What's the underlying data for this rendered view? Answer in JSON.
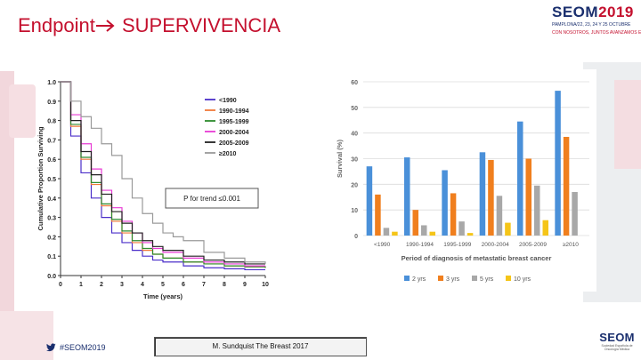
{
  "slide": {
    "title_left": "Endpoint",
    "title_right": "SUPERVIVENCIA",
    "hashtag": "#SEOM2019",
    "reference": "M. Sundquist The Breast  2017"
  },
  "logo_top": {
    "brand": "SEOM",
    "year": "2019",
    "subtitle": "PAMPLONA/22, 23, 24 Y 25 OCTUBRE",
    "tagline": "CON NOSOTROS, JUNTOS AVANZAMOS EN CÁNCER"
  },
  "logo_bottom": {
    "brand": "SEOM",
    "subtitle": "Sociedad Española de Oncología Médica"
  },
  "colors": {
    "accent_red": "#c4102e",
    "navy": "#1a2f6e"
  },
  "chart_data": [
    {
      "type": "line",
      "title": "",
      "xlabel": "Time (years)",
      "ylabel": "Cumulative Proportion Surviving",
      "xlim": [
        0,
        10
      ],
      "ylim": [
        0,
        1.0
      ],
      "xticks": [
        "0",
        "1",
        "2",
        "3",
        "4",
        "5",
        "6",
        "7",
        "8",
        "9",
        "10"
      ],
      "yticks": [
        "0.0",
        "0.1",
        "0.2",
        "0.3",
        "0.4",
        "0.5",
        "0.6",
        "0.7",
        "0.8",
        "0.9",
        "1.0"
      ],
      "annotation": "P for trend ≤0.001",
      "legend_position": "top-right",
      "series": [
        {
          "name": "<1990",
          "color": "#4b2fc9",
          "x": [
            0,
            0.5,
            1,
            1.5,
            2,
            2.5,
            3,
            3.5,
            4,
            4.5,
            5,
            6,
            7,
            8,
            9,
            10
          ],
          "y": [
            1.0,
            0.72,
            0.53,
            0.4,
            0.3,
            0.22,
            0.17,
            0.13,
            0.1,
            0.08,
            0.07,
            0.05,
            0.04,
            0.035,
            0.03,
            0.03
          ]
        },
        {
          "name": "1990-1994",
          "color": "#f07a3a",
          "x": [
            0,
            0.5,
            1,
            1.5,
            2,
            2.5,
            3,
            3.5,
            4,
            4.5,
            5,
            6,
            7,
            8,
            9,
            10
          ],
          "y": [
            1.0,
            0.77,
            0.6,
            0.47,
            0.36,
            0.28,
            0.22,
            0.17,
            0.13,
            0.11,
            0.09,
            0.07,
            0.06,
            0.05,
            0.045,
            0.04
          ]
        },
        {
          "name": "1995-1999",
          "color": "#2e8b2e",
          "x": [
            0,
            0.5,
            1,
            1.5,
            2,
            2.5,
            3,
            3.5,
            4,
            4.5,
            5,
            6,
            7,
            8,
            9,
            10
          ],
          "y": [
            1.0,
            0.78,
            0.61,
            0.48,
            0.37,
            0.29,
            0.23,
            0.18,
            0.14,
            0.11,
            0.09,
            0.07,
            0.06,
            0.05,
            0.045,
            0.04
          ]
        },
        {
          "name": "2000-2004",
          "color": "#e83ad4",
          "x": [
            0,
            0.5,
            1,
            1.5,
            2,
            2.5,
            3,
            3.5,
            4,
            4.5,
            5,
            6,
            7,
            8,
            9,
            10
          ],
          "y": [
            1.0,
            0.83,
            0.68,
            0.55,
            0.44,
            0.35,
            0.28,
            0.22,
            0.17,
            0.14,
            0.12,
            0.09,
            0.07,
            0.06,
            0.05,
            0.05
          ]
        },
        {
          "name": "2005-2009",
          "color": "#222222",
          "x": [
            0,
            0.5,
            1,
            1.5,
            2,
            2.5,
            3,
            3.5,
            4,
            4.5,
            5,
            6,
            7,
            8,
            9,
            10
          ],
          "y": [
            1.0,
            0.8,
            0.64,
            0.52,
            0.42,
            0.33,
            0.27,
            0.22,
            0.18,
            0.15,
            0.13,
            0.1,
            0.08,
            0.07,
            0.06,
            0.06
          ]
        },
        {
          "name": "≥2010",
          "color": "#9a9a9a",
          "x": [
            0,
            0.5,
            1,
            1.5,
            2,
            2.5,
            3,
            3.5,
            4,
            4.5,
            5,
            5.5,
            6,
            7,
            8,
            9,
            10
          ],
          "y": [
            1.0,
            0.9,
            0.82,
            0.76,
            0.68,
            0.62,
            0.5,
            0.4,
            0.32,
            0.27,
            0.22,
            0.2,
            0.18,
            0.12,
            0.09,
            0.07,
            0.06
          ]
        }
      ]
    },
    {
      "type": "bar",
      "title": "",
      "xlabel": "Period of diagnosis of metastatic breast cancer",
      "ylabel": "Survival (%)",
      "ylim": [
        0,
        60
      ],
      "yticks": [
        "0",
        "10",
        "20",
        "30",
        "40",
        "50",
        "60"
      ],
      "legend_position": "bottom",
      "categories": [
        "<1990",
        "1990-1994",
        "1995-1999",
        "2000-2004",
        "2005-2009",
        "≥2010"
      ],
      "series": [
        {
          "name": "2 yrs",
          "color": "#4a90d9",
          "values": [
            27,
            30.5,
            25.5,
            32.5,
            44.5,
            56.5
          ]
        },
        {
          "name": "3 yrs",
          "color": "#f07f1e",
          "values": [
            16,
            10,
            16.5,
            29.5,
            30,
            38.5
          ]
        },
        {
          "name": "5 yrs",
          "color": "#a8a8a8",
          "values": [
            3,
            4,
            5.5,
            15.5,
            19.5,
            17
          ]
        },
        {
          "name": "10 yrs",
          "color": "#f5c518",
          "values": [
            1.5,
            1.5,
            1,
            5,
            6,
            0
          ]
        }
      ]
    }
  ]
}
